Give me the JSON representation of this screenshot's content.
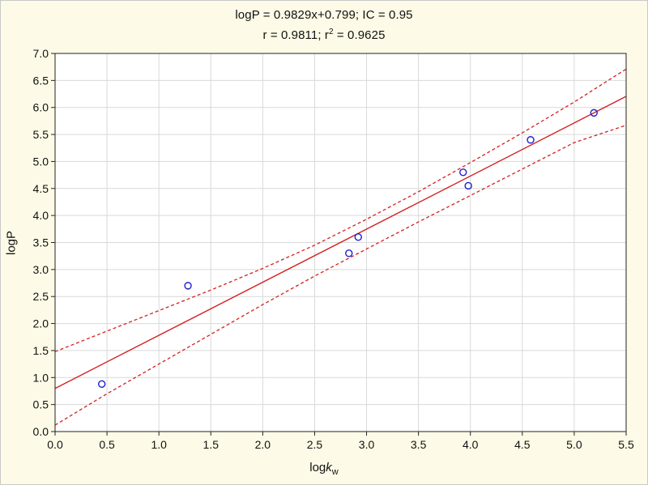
{
  "title_line1": "logP = 0.9829x+0.799; IC = 0.95",
  "title_line2_prefix": "r = 0.9811; r",
  "title_line2_sup": "2",
  "title_line2_suffix": " = 0.9625",
  "xlabel_main": "log",
  "xlabel_italic": "k",
  "xlabel_sub": "w",
  "ylabel": "logP",
  "chart_data": {
    "type": "scatter",
    "xlim": [
      0.0,
      5.5
    ],
    "ylim": [
      0.0,
      7.0
    ],
    "xticks": [
      "0.0",
      "0.5",
      "1.0",
      "1.5",
      "2.0",
      "2.5",
      "3.0",
      "3.5",
      "4.0",
      "4.5",
      "5.0",
      "5.5"
    ],
    "yticks": [
      "0.0",
      "0.5",
      "1.0",
      "1.5",
      "2.0",
      "2.5",
      "3.0",
      "3.5",
      "4.0",
      "4.5",
      "5.0",
      "5.5",
      "6.0",
      "6.5",
      "7.0"
    ],
    "grid": true,
    "points": [
      {
        "x": 0.45,
        "y": 0.88
      },
      {
        "x": 1.28,
        "y": 2.7
      },
      {
        "x": 2.83,
        "y": 3.3
      },
      {
        "x": 2.92,
        "y": 3.6
      },
      {
        "x": 3.93,
        "y": 4.8
      },
      {
        "x": 3.98,
        "y": 4.55
      },
      {
        "x": 4.58,
        "y": 5.4
      },
      {
        "x": 5.19,
        "y": 5.9
      }
    ],
    "fit": {
      "slope": 0.9829,
      "intercept": 0.799
    },
    "ci_upper": [
      {
        "x": 0.0,
        "y": 1.48
      },
      {
        "x": 0.5,
        "y": 1.86
      },
      {
        "x": 1.0,
        "y": 2.24
      },
      {
        "x": 1.5,
        "y": 2.62
      },
      {
        "x": 2.0,
        "y": 3.02
      },
      {
        "x": 2.5,
        "y": 3.45
      },
      {
        "x": 3.0,
        "y": 3.93
      },
      {
        "x": 3.5,
        "y": 4.44
      },
      {
        "x": 4.0,
        "y": 4.98
      },
      {
        "x": 4.5,
        "y": 5.53
      },
      {
        "x": 5.0,
        "y": 6.1
      },
      {
        "x": 5.5,
        "y": 6.71
      }
    ],
    "ci_lower": [
      {
        "x": 0.0,
        "y": 0.12
      },
      {
        "x": 0.5,
        "y": 0.7
      },
      {
        "x": 1.0,
        "y": 1.25
      },
      {
        "x": 1.5,
        "y": 1.8
      },
      {
        "x": 2.0,
        "y": 2.35
      },
      {
        "x": 2.5,
        "y": 2.88
      },
      {
        "x": 3.0,
        "y": 3.38
      },
      {
        "x": 3.5,
        "y": 3.88
      },
      {
        "x": 4.0,
        "y": 4.37
      },
      {
        "x": 4.5,
        "y": 4.86
      },
      {
        "x": 5.0,
        "y": 5.35
      },
      {
        "x": 5.5,
        "y": 5.67
      }
    ],
    "colors": {
      "points": "#1f1fd0",
      "fit": "#d42020",
      "ci": "#d42020",
      "grid": "#d9d9d9",
      "plot_bg": "#ffffff",
      "axis": "#222222"
    }
  }
}
